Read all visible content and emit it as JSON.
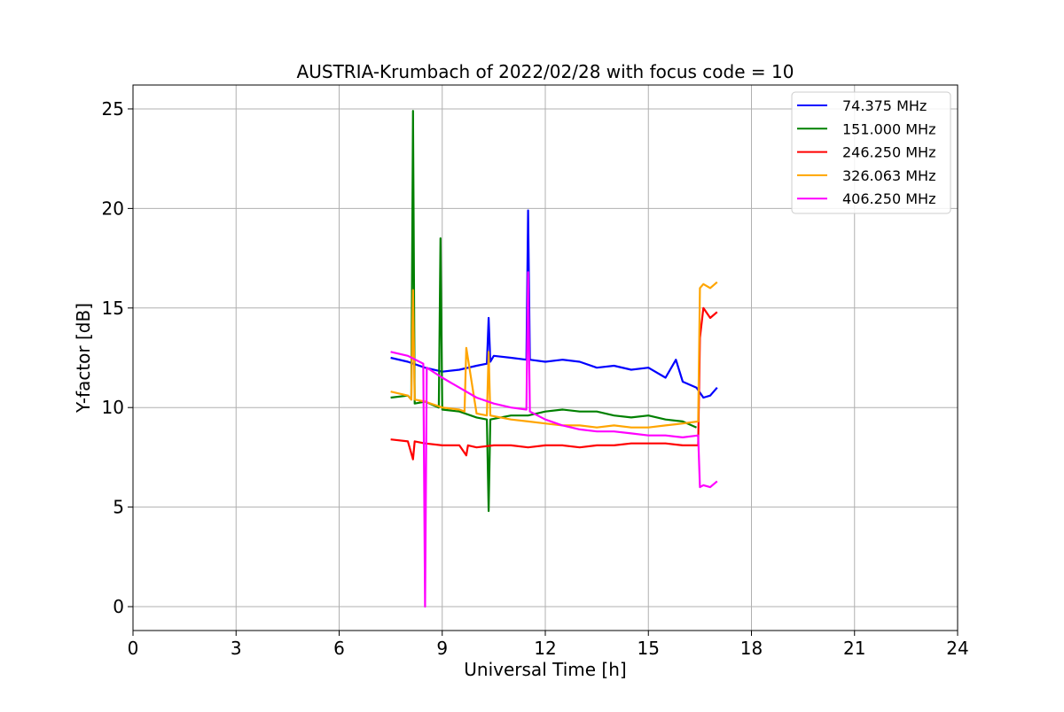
{
  "chart_data": {
    "type": "line",
    "title": "AUSTRIA-Krumbach of 2022/02/28 with focus code = 10",
    "xlabel": "Universal Time [h]",
    "ylabel": "Y-factor [dB]",
    "xlim": [
      0,
      24
    ],
    "ylim": [
      -1.2,
      26.2
    ],
    "xticks": [
      0,
      3,
      6,
      9,
      12,
      15,
      18,
      21,
      24
    ],
    "yticks": [
      0,
      5,
      10,
      15,
      20,
      25
    ],
    "grid": true,
    "legend_position": "top-right",
    "series": [
      {
        "name": "  74.375 MHz",
        "color": "#0000ff",
        "x": [
          7.5,
          8.0,
          8.5,
          9.0,
          9.5,
          10.0,
          10.3,
          10.35,
          10.4,
          10.5,
          11.0,
          11.45,
          11.5,
          11.55,
          12.0,
          12.5,
          13.0,
          13.5,
          14.0,
          14.5,
          15.0,
          15.5,
          15.8,
          16.0,
          16.4,
          16.6,
          16.8,
          17.0
        ],
        "y": [
          12.5,
          12.3,
          12.0,
          11.8,
          11.9,
          12.1,
          12.2,
          14.5,
          12.3,
          12.6,
          12.5,
          12.4,
          19.9,
          12.4,
          12.3,
          12.4,
          12.3,
          12.0,
          12.1,
          11.9,
          12.0,
          11.5,
          12.4,
          11.3,
          11.0,
          10.5,
          10.6,
          11.0
        ]
      },
      {
        "name": "151.000 MHz",
        "color": "#008000",
        "x": [
          7.5,
          8.0,
          8.1,
          8.15,
          8.2,
          8.5,
          8.9,
          8.95,
          9.0,
          9.5,
          10.0,
          10.3,
          10.35,
          10.4,
          11.0,
          11.5,
          12.0,
          12.5,
          13.0,
          13.5,
          14.0,
          14.5,
          15.0,
          15.5,
          16.0,
          16.4
        ],
        "y": [
          10.5,
          10.6,
          10.4,
          24.9,
          10.2,
          10.3,
          10.0,
          18.5,
          9.9,
          9.8,
          9.5,
          9.4,
          4.8,
          9.4,
          9.6,
          9.6,
          9.8,
          9.9,
          9.8,
          9.8,
          9.6,
          9.5,
          9.6,
          9.4,
          9.3,
          9.0
        ]
      },
      {
        "name": "246.250 MHz",
        "color": "#ff0000",
        "x": [
          7.5,
          8.0,
          8.15,
          8.2,
          8.5,
          9.0,
          9.5,
          9.7,
          9.75,
          10.0,
          10.5,
          11.0,
          11.5,
          12.0,
          12.5,
          13.0,
          13.5,
          14.0,
          14.5,
          15.0,
          15.5,
          16.0,
          16.45,
          16.5,
          16.6,
          16.8,
          17.0
        ],
        "y": [
          8.4,
          8.3,
          7.4,
          8.3,
          8.2,
          8.1,
          8.1,
          7.6,
          8.1,
          8.0,
          8.1,
          8.1,
          8.0,
          8.1,
          8.1,
          8.0,
          8.1,
          8.1,
          8.2,
          8.2,
          8.2,
          8.1,
          8.1,
          13.5,
          15.0,
          14.5,
          14.8
        ]
      },
      {
        "name": "326.063 MHz",
        "color": "#ffa500",
        "x": [
          7.5,
          8.0,
          8.1,
          8.15,
          8.2,
          8.5,
          9.0,
          9.5,
          9.65,
          9.7,
          10.0,
          10.3,
          10.35,
          10.4,
          11.0,
          11.5,
          12.0,
          12.5,
          13.0,
          13.5,
          14.0,
          14.5,
          15.0,
          15.5,
          16.0,
          16.45,
          16.5,
          16.6,
          16.8,
          17.0
        ],
        "y": [
          10.8,
          10.6,
          10.4,
          15.9,
          10.4,
          10.3,
          10.0,
          9.9,
          9.8,
          13.0,
          9.7,
          9.6,
          12.8,
          9.6,
          9.4,
          9.3,
          9.2,
          9.1,
          9.1,
          9.0,
          9.1,
          9.0,
          9.0,
          9.1,
          9.2,
          9.3,
          16.0,
          16.2,
          16.0,
          16.3
        ]
      },
      {
        "name": "406.250 MHz",
        "color": "#ff00ff",
        "x": [
          7.5,
          8.0,
          8.45,
          8.5,
          8.55,
          9.0,
          9.5,
          10.0,
          10.5,
          11.0,
          11.45,
          11.5,
          11.55,
          12.0,
          12.5,
          13.0,
          13.5,
          14.0,
          14.5,
          15.0,
          15.5,
          16.0,
          16.45,
          16.5,
          16.6,
          16.8,
          17.0
        ],
        "y": [
          12.8,
          12.6,
          12.2,
          0.0,
          12.0,
          11.5,
          11.0,
          10.5,
          10.2,
          10.0,
          9.9,
          16.8,
          9.8,
          9.4,
          9.1,
          8.9,
          8.8,
          8.8,
          8.7,
          8.6,
          8.6,
          8.5,
          8.6,
          6.0,
          6.1,
          6.0,
          6.3
        ]
      }
    ]
  }
}
